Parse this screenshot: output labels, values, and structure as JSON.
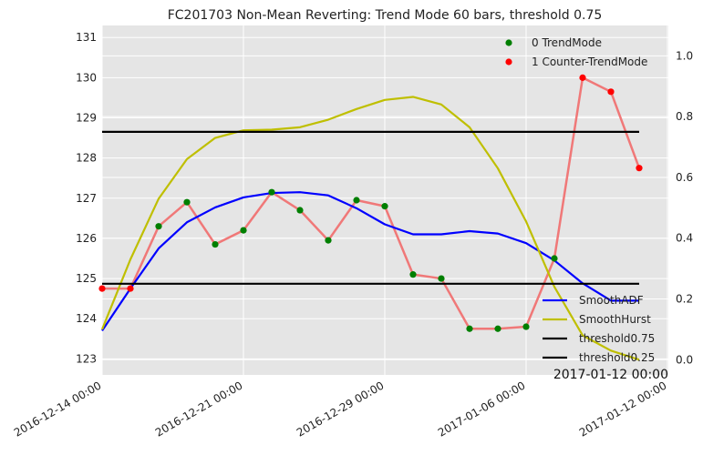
{
  "chart_data": {
    "type": "line",
    "title": "FC201703 Non-Mean Reverting: Trend Mode 60 bars, threshold 0.75",
    "corner_annotation": "2017-01-12 00:00",
    "x_tick_labels": [
      "2016-12-14 00:00",
      "2016-12-21 00:00",
      "2016-12-29 00:00",
      "2017-01-06 00:00",
      "2017-01-12 00:00"
    ],
    "left_axis": {
      "ylim": [
        122.6,
        131.3
      ],
      "ticks": [
        "123",
        "124",
        "125",
        "126",
        "127",
        "128",
        "129",
        "130",
        "131"
      ]
    },
    "right_axis": {
      "ylim": [
        -0.05,
        1.1
      ],
      "ticks": [
        "0.0",
        "0.2",
        "0.4",
        "0.6",
        "0.8",
        "1.0"
      ]
    },
    "grid": true,
    "background": "#e5e5e5",
    "series": [
      {
        "id": "price",
        "axis": "left",
        "color": "#f07878",
        "values": [
          124.75,
          124.75,
          126.3,
          126.9,
          125.85,
          126.2,
          127.15,
          126.7,
          125.95,
          126.95,
          126.8,
          125.1,
          125.0,
          123.75,
          123.75,
          123.8,
          125.5,
          130.0,
          129.65,
          127.75
        ]
      },
      {
        "id": "smooth_adf",
        "axis": "left",
        "color": "#0000ff",
        "values": [
          123.7,
          124.75,
          125.75,
          126.4,
          126.77,
          127.02,
          127.13,
          127.15,
          127.07,
          126.75,
          126.35,
          126.1,
          126.1,
          126.18,
          126.12,
          125.88,
          125.45,
          124.88,
          124.45,
          124.45
        ]
      },
      {
        "id": "smooth_hurst",
        "axis": "right",
        "color": "#bfbf00",
        "values": [
          0.1,
          0.33,
          0.53,
          0.66,
          0.73,
          0.755,
          0.757,
          0.765,
          0.79,
          0.825,
          0.855,
          0.865,
          0.84,
          0.765,
          0.63,
          0.455,
          0.24,
          0.08,
          0.03,
          0.0
        ]
      },
      {
        "id": "threshold_high",
        "axis": "right",
        "color": "#000000",
        "value": 0.75
      },
      {
        "id": "threshold_low",
        "axis": "right",
        "color": "#000000",
        "value": 0.25
      }
    ],
    "markers": {
      "trend_color": "#007f00",
      "counter_color": "#ff0000",
      "states": [
        1,
        1,
        0,
        0,
        0,
        0,
        0,
        0,
        0,
        0,
        0,
        0,
        0,
        0,
        0,
        0,
        0,
        1,
        1,
        1
      ]
    },
    "legend_top": [
      {
        "label": "0 TrendMode",
        "color": "#007f00"
      },
      {
        "label": "1 Counter-TrendMode",
        "color": "#ff0000"
      }
    ],
    "legend_bottom": [
      {
        "label": "SmoothADF",
        "color": "#0000ff"
      },
      {
        "label": "SmoothHurst",
        "color": "#bfbf00"
      },
      {
        "label": "threshold0.75",
        "color": "#000000"
      },
      {
        "label": "threshold0.25",
        "color": "#000000"
      }
    ]
  }
}
